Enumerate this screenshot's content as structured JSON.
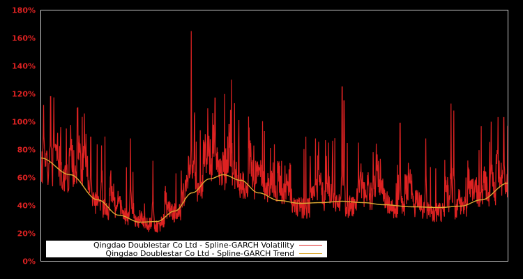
{
  "chart_data": {
    "type": "line",
    "title": "",
    "xlabel": "",
    "ylabel": "",
    "ylim": [
      0,
      180
    ],
    "y_ticks": [
      0,
      20,
      40,
      60,
      80,
      100,
      120,
      140,
      160,
      180
    ],
    "y_tick_labels": [
      "0%",
      "20%",
      "40%",
      "60%",
      "80%",
      "100%",
      "120%",
      "140%",
      "160%",
      "180%"
    ],
    "grid": false,
    "legend_position": "lower-left inside",
    "x_fraction_note": "x positions expressed as fraction (0-1) of the plot width; no x-axis tick labels are shown",
    "series": [
      {
        "name": "Qingdao Doublestar Co Ltd - Spline-GARCH Volatility",
        "color": "#dd2222",
        "spikes": [
          {
            "x": 0.006,
            "y": 112
          },
          {
            "x": 0.021,
            "y": 118
          },
          {
            "x": 0.036,
            "y": 92
          },
          {
            "x": 0.107,
            "y": 89
          },
          {
            "x": 0.13,
            "y": 83
          },
          {
            "x": 0.192,
            "y": 88
          },
          {
            "x": 0.24,
            "y": 72
          },
          {
            "x": 0.322,
            "y": 165
          },
          {
            "x": 0.373,
            "y": 117
          },
          {
            "x": 0.403,
            "y": 98
          },
          {
            "x": 0.46,
            "y": 72
          },
          {
            "x": 0.588,
            "y": 88
          },
          {
            "x": 0.645,
            "y": 125
          },
          {
            "x": 0.649,
            "y": 115
          },
          {
            "x": 0.68,
            "y": 85
          },
          {
            "x": 0.769,
            "y": 99
          },
          {
            "x": 0.824,
            "y": 88
          },
          {
            "x": 0.878,
            "y": 113
          },
          {
            "x": 0.884,
            "y": 108
          },
          {
            "x": 0.964,
            "y": 100
          },
          {
            "x": 0.991,
            "y": 103
          }
        ]
      },
      {
        "name": "Qingdao Doublestar Co Ltd - Spline-GARCH Trend",
        "color": "#ddaa33",
        "points": [
          {
            "x": 0.0,
            "y": 74
          },
          {
            "x": 0.063,
            "y": 62
          },
          {
            "x": 0.122,
            "y": 44
          },
          {
            "x": 0.167,
            "y": 33
          },
          {
            "x": 0.212,
            "y": 28
          },
          {
            "x": 0.249,
            "y": 28.5
          },
          {
            "x": 0.287,
            "y": 36
          },
          {
            "x": 0.324,
            "y": 49
          },
          {
            "x": 0.361,
            "y": 59
          },
          {
            "x": 0.391,
            "y": 62
          },
          {
            "x": 0.428,
            "y": 58
          },
          {
            "x": 0.466,
            "y": 49
          },
          {
            "x": 0.51,
            "y": 43.5
          },
          {
            "x": 0.555,
            "y": 41.5
          },
          {
            "x": 0.6,
            "y": 42
          },
          {
            "x": 0.645,
            "y": 43
          },
          {
            "x": 0.69,
            "y": 42
          },
          {
            "x": 0.734,
            "y": 40.5
          },
          {
            "x": 0.794,
            "y": 39
          },
          {
            "x": 0.854,
            "y": 38.5
          },
          {
            "x": 0.899,
            "y": 39.5
          },
          {
            "x": 0.943,
            "y": 44
          },
          {
            "x": 1.0,
            "y": 56
          }
        ]
      }
    ]
  },
  "legend": {
    "items": [
      {
        "label": "Qingdao Doublestar Co Ltd - Spline-GARCH Volatility",
        "color": "#dd2222"
      },
      {
        "label": "Qingdao Doublestar Co Ltd - Spline-GARCH Trend",
        "color": "#ddaa33"
      }
    ]
  },
  "colors": {
    "background": "#000000",
    "axis": "#cccccc",
    "tick_label": "#dd2222",
    "legend_bg": "#ffffff"
  }
}
